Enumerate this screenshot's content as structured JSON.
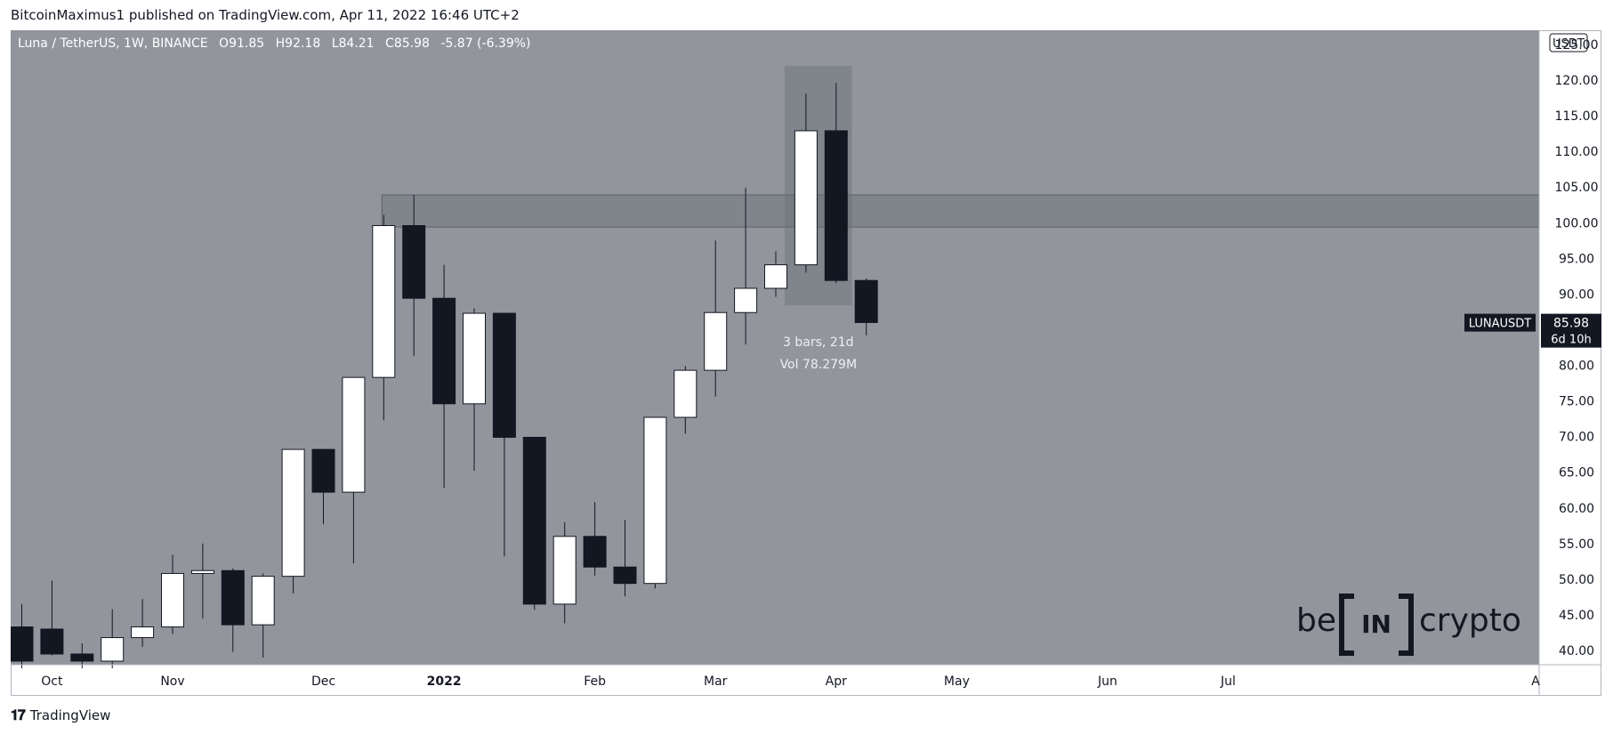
{
  "header": {
    "publish_line": "BitcoinMaximus1 published on TradingView.com, Apr 11, 2022 16:46 UTC+2"
  },
  "legend": {
    "symbol": "Luna / TetherUS, 1W, BINANCE",
    "o_label": "O",
    "o": "91.85",
    "h_label": "H",
    "h": "92.18",
    "l_label": "L",
    "l": "84.21",
    "c_label": "C",
    "c": "85.98",
    "change": "-5.87 (-6.39%)"
  },
  "price_scale": {
    "currency": "USDT"
  },
  "last_price": {
    "symbol_label": "LUNAUSDT",
    "value": "85.98",
    "countdown": "6d 10h"
  },
  "measure_label": {
    "bars": "3 bars, 21d",
    "volume": "Vol 78.279M"
  },
  "watermark": {
    "left": "be",
    "center": "IN",
    "right": "crypto"
  },
  "footer": {
    "brand": "TradingView"
  },
  "colors": {
    "background": "#93959d",
    "bull": "#ffffff",
    "bear": "#131722",
    "zone": "#6b6e76"
  },
  "chart_data": {
    "type": "candlestick",
    "interval": "1W",
    "ylim": [
      38,
      127
    ],
    "y_ticks": [
      40,
      45,
      50,
      55,
      60,
      65,
      70,
      75,
      80,
      85,
      90,
      95,
      100,
      105,
      110,
      115,
      120,
      125
    ],
    "y_tick_labels": [
      "40.00",
      "45.00",
      "50.00",
      "55.00",
      "60.00",
      "65.00",
      "70.00",
      "75.00",
      "80.00",
      "85.00",
      "90.00",
      "95.00",
      "100.00",
      "105.00",
      "110.00",
      "115.00",
      "120.00",
      "125.00"
    ],
    "x_labels": [
      "Oct",
      "Nov",
      "Dec",
      "2022",
      "Feb",
      "Mar",
      "Apr",
      "May",
      "Jun",
      "Jul",
      "A"
    ],
    "candles": [
      {
        "o": 43.3,
        "h": 46.5,
        "l": 37.5,
        "c": 38.5
      },
      {
        "o": 43.0,
        "h": 49.8,
        "l": 39.3,
        "c": 39.5
      },
      {
        "o": 39.5,
        "h": 41.0,
        "l": 37.5,
        "c": 38.5
      },
      {
        "o": 38.5,
        "h": 45.8,
        "l": 37.5,
        "c": 41.8
      },
      {
        "o": 41.8,
        "h": 47.2,
        "l": 40.5,
        "c": 43.3
      },
      {
        "o": 43.3,
        "h": 53.4,
        "l": 42.3,
        "c": 50.8
      },
      {
        "o": 50.8,
        "h": 55.0,
        "l": 44.5,
        "c": 51.2
      },
      {
        "o": 51.2,
        "h": 51.5,
        "l": 39.8,
        "c": 43.6
      },
      {
        "o": 43.6,
        "h": 50.8,
        "l": 39.0,
        "c": 50.4
      },
      {
        "o": 50.4,
        "h": 68.2,
        "l": 48.0,
        "c": 68.2
      },
      {
        "o": 68.2,
        "h": 68.2,
        "l": 57.7,
        "c": 62.2
      },
      {
        "o": 62.2,
        "h": 78.3,
        "l": 52.2,
        "c": 78.3
      },
      {
        "o": 78.3,
        "h": 101.1,
        "l": 72.3,
        "c": 99.6
      },
      {
        "o": 99.6,
        "h": 103.9,
        "l": 81.3,
        "c": 89.4
      },
      {
        "o": 89.4,
        "h": 94.1,
        "l": 62.8,
        "c": 74.6
      },
      {
        "o": 74.6,
        "h": 88.0,
        "l": 65.2,
        "c": 87.3
      },
      {
        "o": 87.3,
        "h": 87.3,
        "l": 53.2,
        "c": 69.9
      },
      {
        "o": 69.9,
        "h": 69.9,
        "l": 45.7,
        "c": 46.5
      },
      {
        "o": 46.5,
        "h": 58.0,
        "l": 43.8,
        "c": 56.0
      },
      {
        "o": 56.0,
        "h": 60.8,
        "l": 50.5,
        "c": 51.7
      },
      {
        "o": 51.7,
        "h": 58.3,
        "l": 47.6,
        "c": 49.4
      },
      {
        "o": 49.4,
        "h": 72.7,
        "l": 48.7,
        "c": 72.7
      },
      {
        "o": 72.7,
        "h": 79.9,
        "l": 70.4,
        "c": 79.3
      },
      {
        "o": 79.3,
        "h": 97.5,
        "l": 75.6,
        "c": 87.4
      },
      {
        "o": 87.4,
        "h": 104.9,
        "l": 82.9,
        "c": 90.8
      },
      {
        "o": 90.8,
        "h": 96.0,
        "l": 89.6,
        "c": 94.1
      },
      {
        "o": 94.1,
        "h": 118.1,
        "l": 93.0,
        "c": 112.9
      },
      {
        "o": 112.9,
        "h": 119.6,
        "l": 91.5,
        "c": 91.9
      },
      {
        "o": 91.9,
        "h": 92.2,
        "l": 84.2,
        "c": 86.0
      }
    ],
    "resistance_zone": {
      "from": 99.4,
      "to": 103.9
    },
    "measured_range": {
      "high": 122.0,
      "low": 88.4,
      "bars": 3
    },
    "last_value": 85.98
  }
}
